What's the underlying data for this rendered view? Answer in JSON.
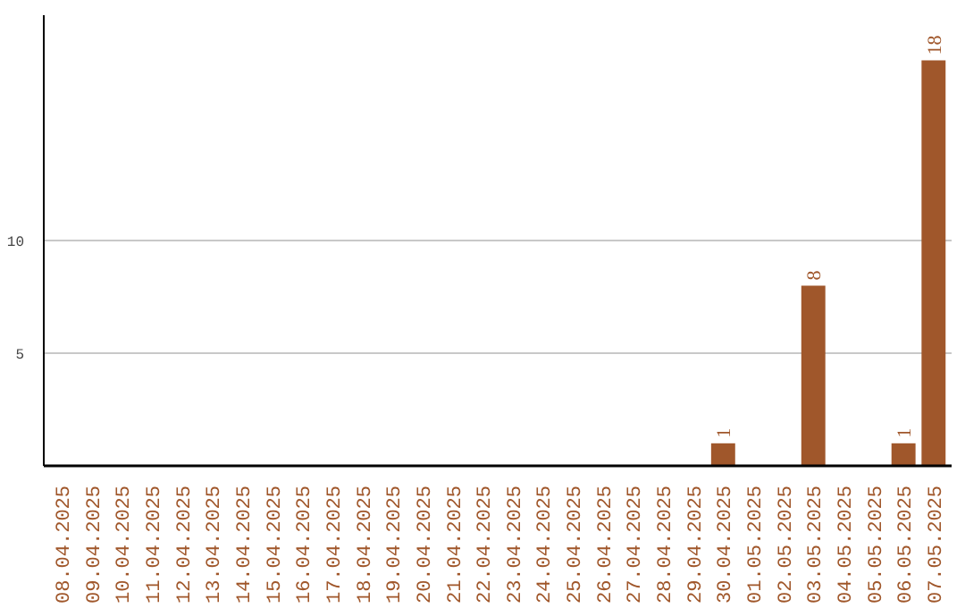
{
  "chart_data": {
    "type": "bar",
    "categories": [
      "08.04.2025",
      "09.04.2025",
      "10.04.2025",
      "11.04.2025",
      "12.04.2025",
      "13.04.2025",
      "14.04.2025",
      "15.04.2025",
      "16.04.2025",
      "17.04.2025",
      "18.04.2025",
      "19.04.2025",
      "20.04.2025",
      "21.04.2025",
      "22.04.2025",
      "23.04.2025",
      "24.04.2025",
      "25.04.2025",
      "26.04.2025",
      "27.04.2025",
      "28.04.2025",
      "29.04.2025",
      "30.04.2025",
      "01.05.2025",
      "02.05.2025",
      "03.05.2025",
      "04.05.2025",
      "05.05.2025",
      "06.05.2025",
      "07.05.2025"
    ],
    "values": [
      0,
      0,
      0,
      0,
      0,
      0,
      0,
      0,
      0,
      0,
      0,
      0,
      0,
      0,
      0,
      0,
      0,
      0,
      0,
      0,
      0,
      0,
      1,
      0,
      0,
      8,
      0,
      0,
      1,
      18
    ],
    "value_labels": [
      null,
      null,
      null,
      null,
      null,
      null,
      null,
      null,
      null,
      null,
      null,
      null,
      null,
      null,
      null,
      null,
      null,
      null,
      null,
      null,
      null,
      null,
      "1",
      null,
      null,
      "8",
      null,
      null,
      "1",
      "18"
    ],
    "color": "#a0572b",
    "ylim": [
      0,
      20
    ],
    "yticks": [
      5,
      10
    ],
    "grid": "y"
  }
}
